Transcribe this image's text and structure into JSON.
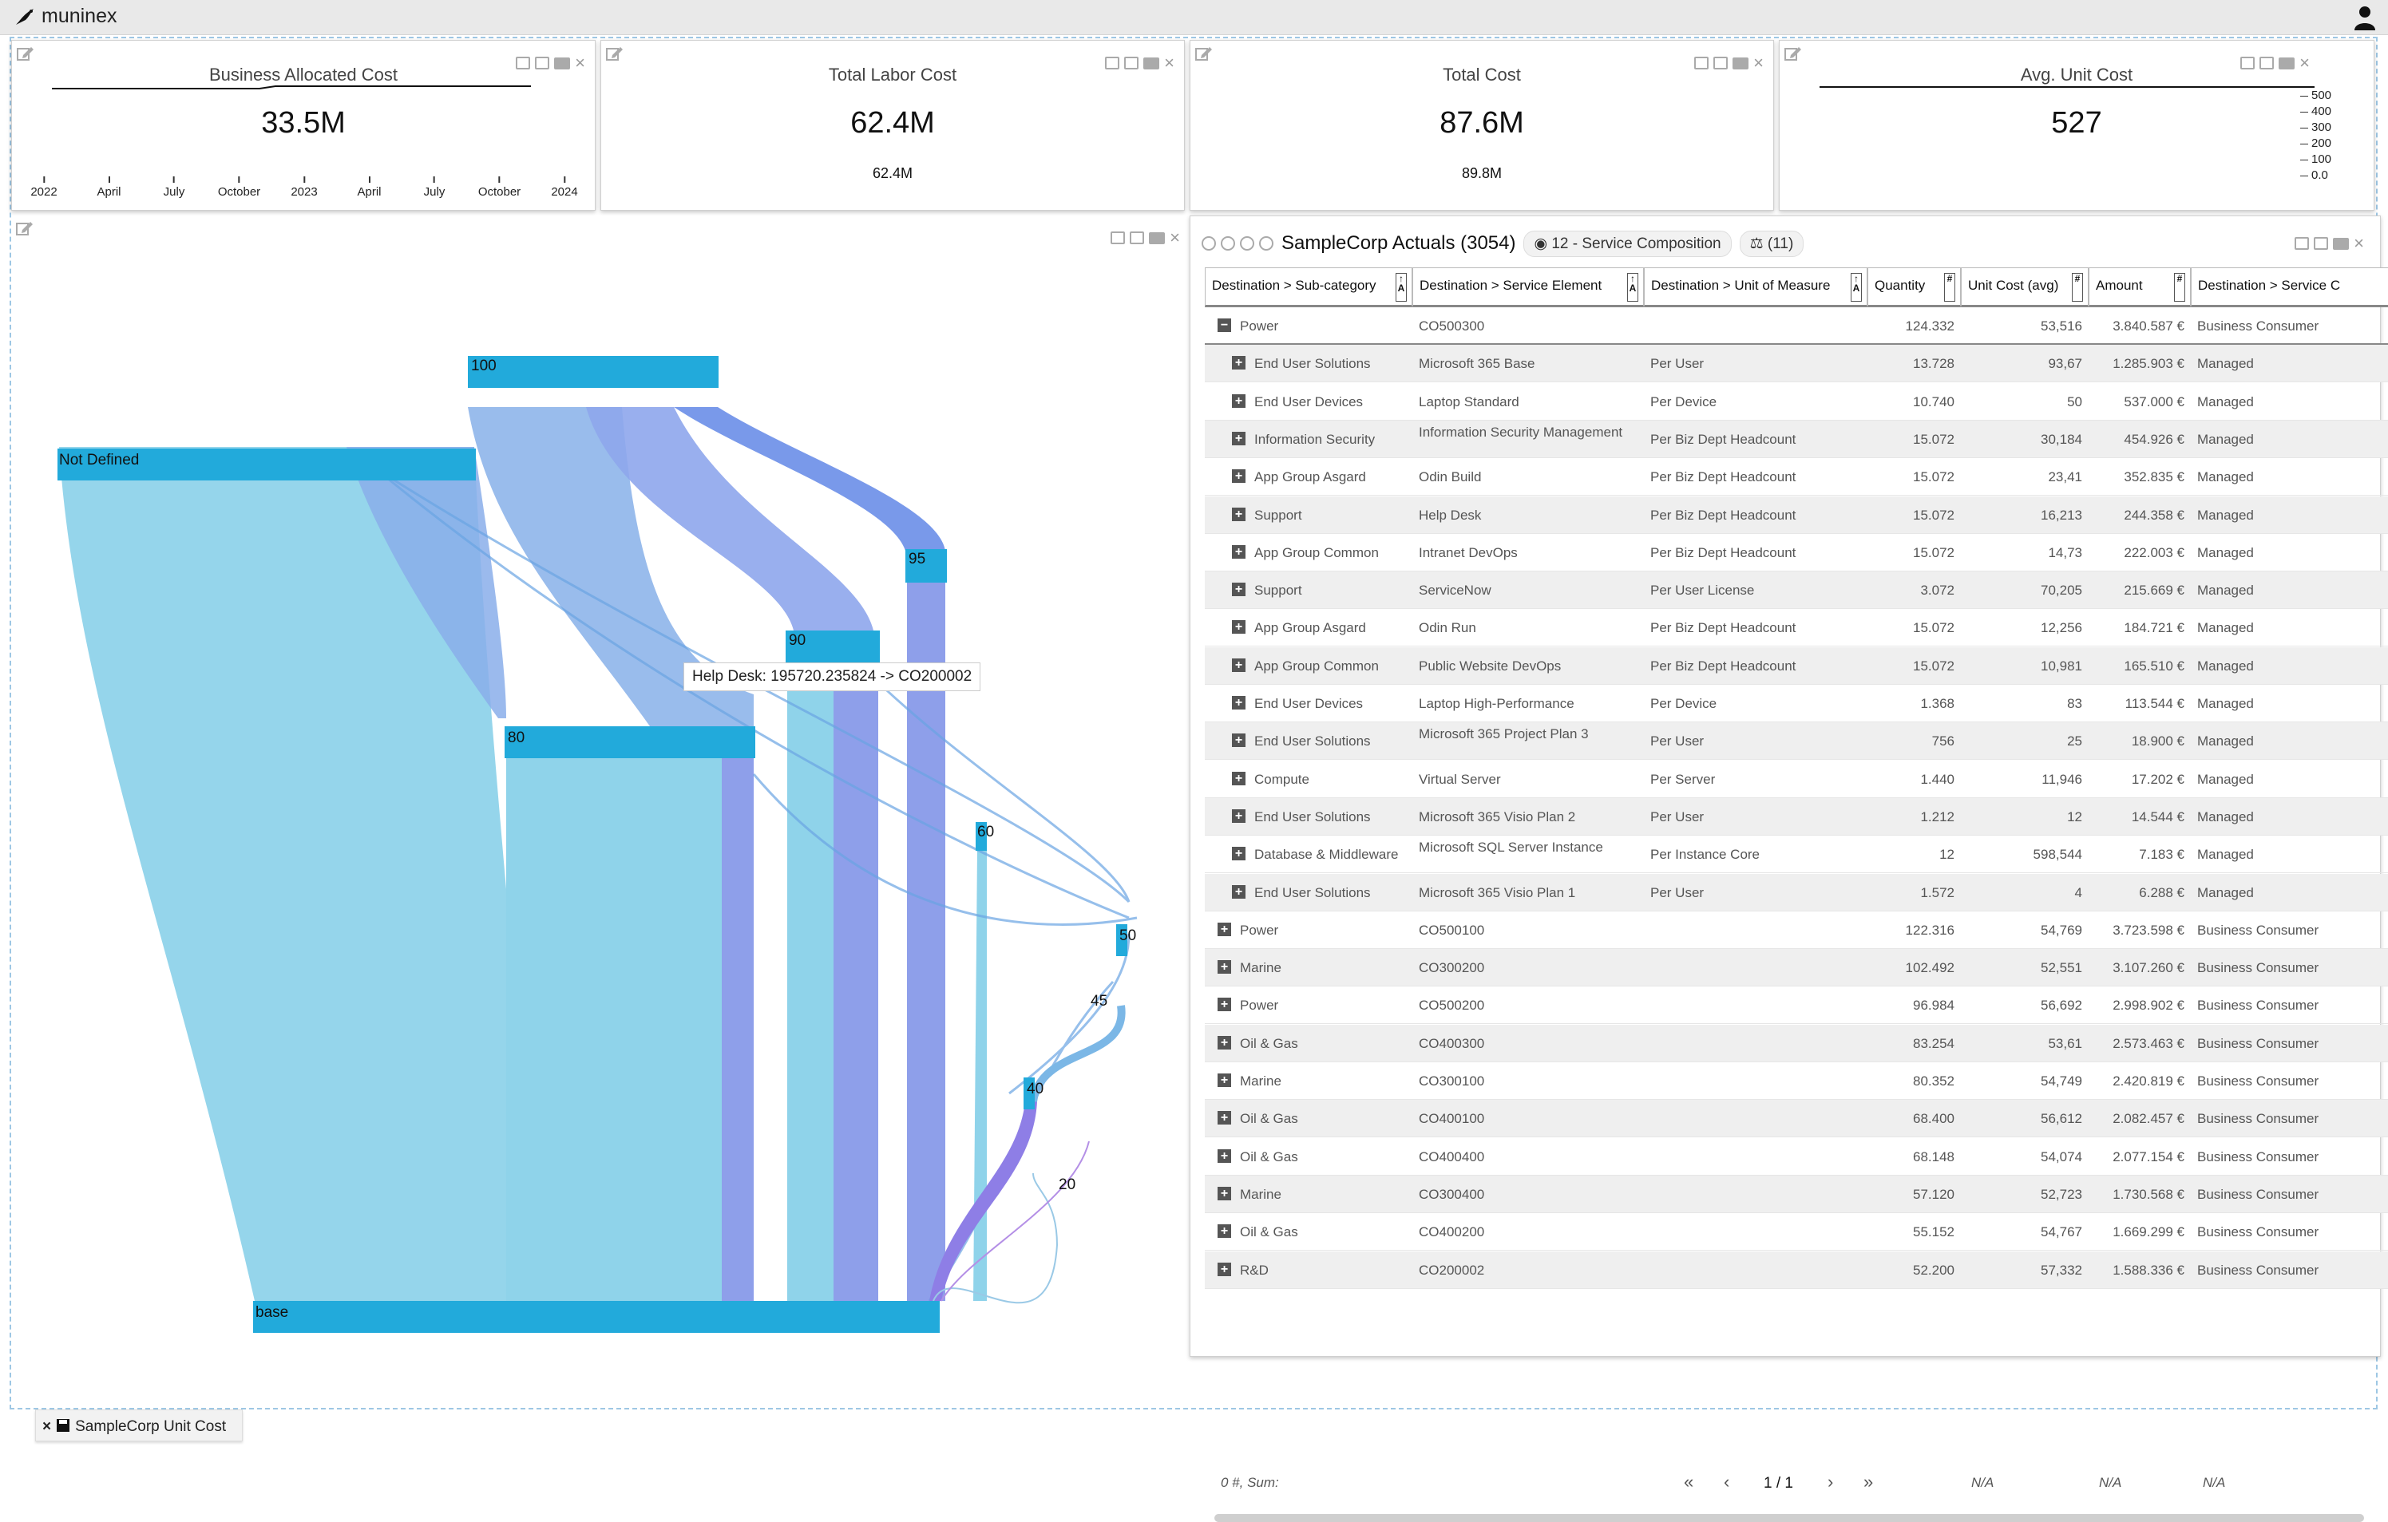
{
  "app": {
    "title": "muninex"
  },
  "kpis": [
    {
      "title": "Business Allocated Cost",
      "value": "33.5M",
      "sub": "",
      "axis": [
        "2022",
        "April",
        "July",
        "October",
        "2023",
        "April",
        "July",
        "October",
        "2024"
      ]
    },
    {
      "title": "Total Labor Cost",
      "value": "62.4M",
      "sub": "62.4M"
    },
    {
      "title": "Total Cost",
      "value": "87.6M",
      "sub": "89.8M"
    },
    {
      "title": "Avg. Unit Cost",
      "value": "527",
      "sub": "",
      "yaxis": [
        "500",
        "400",
        "300",
        "200",
        "100",
        "0.0"
      ]
    }
  ],
  "sankey": {
    "nodes": [
      {
        "label": "100"
      },
      {
        "label": "Not Defined"
      },
      {
        "label": "95"
      },
      {
        "label": "90"
      },
      {
        "label": "80"
      },
      {
        "label": "60"
      },
      {
        "label": "50"
      },
      {
        "label": "45"
      },
      {
        "label": "40"
      },
      {
        "label": "20"
      },
      {
        "label": "base"
      }
    ],
    "tooltip": "Help Desk: 195720.235824 -> CO200002"
  },
  "table": {
    "title": "SampleCorp Actuals (3054)",
    "view_pill": "12 - Service Composition",
    "filter_pill": "(11)",
    "columns": [
      "Destination > Sub-category",
      "Destination > Service Element",
      "Destination > Unit of Measure",
      "Quantity",
      "Unit Cost (avg)",
      "Amount",
      "Destination > Service C"
    ],
    "rows": [
      {
        "sub": "Power",
        "elem": "CO500300",
        "uom": "",
        "qty": "124.332",
        "uc": "53,516",
        "amt": "3.840.587 €",
        "svc": "Business Consumer",
        "level": 0,
        "exp": "−"
      },
      {
        "sub": "End User Solutions",
        "elem": "Microsoft 365 Base",
        "uom": "Per User",
        "qty": "13.728",
        "uc": "93,67",
        "amt": "1.285.903 €",
        "svc": "Managed",
        "level": 1,
        "exp": "+"
      },
      {
        "sub": "End User Devices",
        "elem": "Laptop Standard",
        "uom": "Per Device",
        "qty": "10.740",
        "uc": "50",
        "amt": "537.000 €",
        "svc": "Managed",
        "level": 1,
        "exp": "+"
      },
      {
        "sub": "Information Security",
        "elem": "Information Security Management",
        "uom": "Per Biz Dept Headcount",
        "qty": "15.072",
        "uc": "30,184",
        "amt": "454.926 €",
        "svc": "Managed",
        "level": 1,
        "exp": "+"
      },
      {
        "sub": "App Group Asgard",
        "elem": "Odin Build",
        "uom": "Per Biz Dept Headcount",
        "qty": "15.072",
        "uc": "23,41",
        "amt": "352.835 €",
        "svc": "Managed",
        "level": 1,
        "exp": "+"
      },
      {
        "sub": "Support",
        "elem": "Help Desk",
        "uom": "Per Biz Dept Headcount",
        "qty": "15.072",
        "uc": "16,213",
        "amt": "244.358 €",
        "svc": "Managed",
        "level": 1,
        "exp": "+"
      },
      {
        "sub": "App Group Common",
        "elem": "Intranet DevOps",
        "uom": "Per Biz Dept Headcount",
        "qty": "15.072",
        "uc": "14,73",
        "amt": "222.003 €",
        "svc": "Managed",
        "level": 1,
        "exp": "+"
      },
      {
        "sub": "Support",
        "elem": "ServiceNow",
        "uom": "Per User License",
        "qty": "3.072",
        "uc": "70,205",
        "amt": "215.669 €",
        "svc": "Managed",
        "level": 1,
        "exp": "+"
      },
      {
        "sub": "App Group Asgard",
        "elem": "Odin Run",
        "uom": "Per Biz Dept Headcount",
        "qty": "15.072",
        "uc": "12,256",
        "amt": "184.721 €",
        "svc": "Managed",
        "level": 1,
        "exp": "+"
      },
      {
        "sub": "App Group Common",
        "elem": "Public Website DevOps",
        "uom": "Per Biz Dept Headcount",
        "qty": "15.072",
        "uc": "10,981",
        "amt": "165.510 €",
        "svc": "Managed",
        "level": 1,
        "exp": "+"
      },
      {
        "sub": "End User Devices",
        "elem": "Laptop High-Performance",
        "uom": "Per Device",
        "qty": "1.368",
        "uc": "83",
        "amt": "113.544 €",
        "svc": "Managed",
        "level": 1,
        "exp": "+"
      },
      {
        "sub": "End User Solutions",
        "elem": "Microsoft 365 Project Plan 3",
        "uom": "Per User",
        "qty": "756",
        "uc": "25",
        "amt": "18.900 €",
        "svc": "Managed",
        "level": 1,
        "exp": "+"
      },
      {
        "sub": "Compute",
        "elem": "Virtual Server",
        "uom": "Per Server",
        "qty": "1.440",
        "uc": "11,946",
        "amt": "17.202 €",
        "svc": "Managed",
        "level": 1,
        "exp": "+"
      },
      {
        "sub": "End User Solutions",
        "elem": "Microsoft 365 Visio Plan 2",
        "uom": "Per User",
        "qty": "1.212",
        "uc": "12",
        "amt": "14.544 €",
        "svc": "Managed",
        "level": 1,
        "exp": "+"
      },
      {
        "sub": "Database & Middleware",
        "elem": "Microsoft SQL Server Instance",
        "uom": "Per Instance Core",
        "qty": "12",
        "uc": "598,544",
        "amt": "7.183 €",
        "svc": "Managed",
        "level": 1,
        "exp": "+"
      },
      {
        "sub": "End User Solutions",
        "elem": "Microsoft 365 Visio Plan 1",
        "uom": "Per User",
        "qty": "1.572",
        "uc": "4",
        "amt": "6.288 €",
        "svc": "Managed",
        "level": 1,
        "exp": "+"
      },
      {
        "sub": "Power",
        "elem": "CO500100",
        "uom": "",
        "qty": "122.316",
        "uc": "54,769",
        "amt": "3.723.598 €",
        "svc": "Business Consumer",
        "level": 0,
        "exp": "+"
      },
      {
        "sub": "Marine",
        "elem": "CO300200",
        "uom": "",
        "qty": "102.492",
        "uc": "52,551",
        "amt": "3.107.260 €",
        "svc": "Business Consumer",
        "level": 0,
        "exp": "+"
      },
      {
        "sub": "Power",
        "elem": "CO500200",
        "uom": "",
        "qty": "96.984",
        "uc": "56,692",
        "amt": "2.998.902 €",
        "svc": "Business Consumer",
        "level": 0,
        "exp": "+"
      },
      {
        "sub": "Oil & Gas",
        "elem": "CO400300",
        "uom": "",
        "qty": "83.254",
        "uc": "53,61",
        "amt": "2.573.463 €",
        "svc": "Business Consumer",
        "level": 0,
        "exp": "+"
      },
      {
        "sub": "Marine",
        "elem": "CO300100",
        "uom": "",
        "qty": "80.352",
        "uc": "54,749",
        "amt": "2.420.819 €",
        "svc": "Business Consumer",
        "level": 0,
        "exp": "+"
      },
      {
        "sub": "Oil & Gas",
        "elem": "CO400100",
        "uom": "",
        "qty": "68.400",
        "uc": "56,612",
        "amt": "2.082.457 €",
        "svc": "Business Consumer",
        "level": 0,
        "exp": "+"
      },
      {
        "sub": "Oil & Gas",
        "elem": "CO400400",
        "uom": "",
        "qty": "68.148",
        "uc": "54,074",
        "amt": "2.077.154 €",
        "svc": "Business Consumer",
        "level": 0,
        "exp": "+"
      },
      {
        "sub": "Marine",
        "elem": "CO300400",
        "uom": "",
        "qty": "57.120",
        "uc": "52,723",
        "amt": "1.730.568 €",
        "svc": "Business Consumer",
        "level": 0,
        "exp": "+"
      },
      {
        "sub": "Oil & Gas",
        "elem": "CO400200",
        "uom": "",
        "qty": "55.152",
        "uc": "54,767",
        "amt": "1.669.299 €",
        "svc": "Business Consumer",
        "level": 0,
        "exp": "+"
      },
      {
        "sub": "R&D",
        "elem": "CO200002",
        "uom": "",
        "qty": "52.200",
        "uc": "57,332",
        "amt": "1.588.336 €",
        "svc": "Business Consumer",
        "level": 0,
        "exp": "+"
      }
    ],
    "footer": {
      "sum": "0 #, Sum:",
      "page": "1 / 1",
      "na1": "N/A",
      "na2": "N/A",
      "na3": "N/A"
    }
  },
  "bottom_tab": {
    "label": "SampleCorp Unit Cost"
  },
  "colors": {
    "node": "#22aadb",
    "light_flow": "#8fd3ea",
    "purple_flow": "#8e9fea",
    "blue_flow": "#6a8ee8"
  }
}
